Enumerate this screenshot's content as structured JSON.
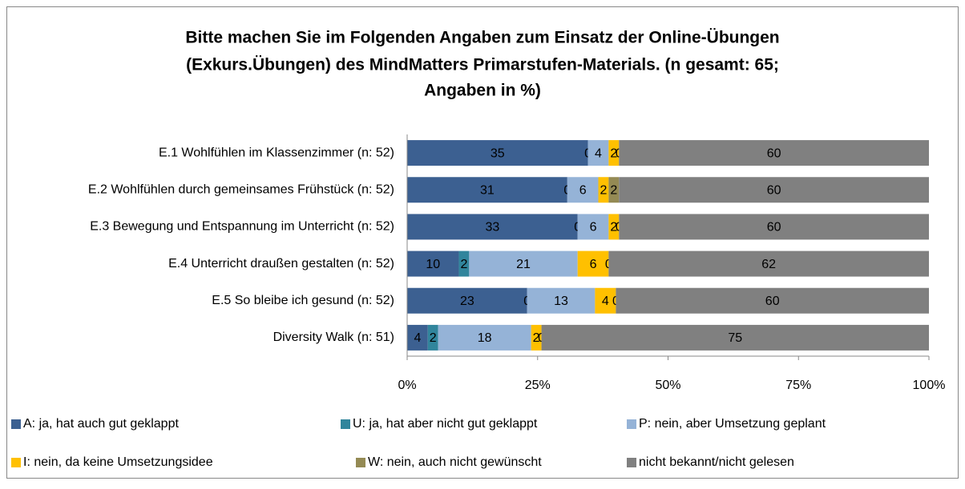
{
  "chart_data": {
    "type": "bar",
    "orientation": "horizontal",
    "stack": "percent",
    "title": [
      "Bitte machen Sie im Folgenden Angaben zum Einsatz der Online-Übungen",
      "(Exkurs.Übungen) des MindMatters Primarstufen-Materials.  (n gesamt: 65;",
      "Angaben in %)"
    ],
    "categories": [
      "E.1  Wohlfühlen im Klassenzimmer (n: 52)",
      "E.2 Wohlfühlen durch gemeinsames Frühstück (n: 52)",
      "E.3 Bewegung und Entspannung im Unterricht (n: 52)",
      "E.4 Unterricht draußen gestalten (n: 52)",
      "E.5 So bleibe ich gesund (n: 52)",
      "Diversity Walk (n: 51)"
    ],
    "series": [
      {
        "name": "A: ja, hat auch gut geklappt",
        "color": "#3c6091",
        "values": [
          35,
          31,
          33,
          10,
          23,
          4
        ]
      },
      {
        "name": "U: ja, hat aber nicht gut geklappt",
        "color": "#31859c",
        "values": [
          0,
          0,
          0,
          2,
          0,
          2
        ]
      },
      {
        "name": "P: nein, aber Umsetzung geplant",
        "color": "#95b3d7",
        "values": [
          4,
          6,
          6,
          21,
          13,
          18
        ]
      },
      {
        "name": "I: nein, da keine Umsetzungsidee",
        "color": "#ffc000",
        "values": [
          2,
          2,
          2,
          6,
          4,
          2
        ]
      },
      {
        "name": "W: nein, auch nicht gewünscht",
        "color": "#948a54",
        "values": [
          0,
          2,
          0,
          0,
          0,
          0
        ]
      },
      {
        "name": "nicht bekannt/nicht gelesen",
        "color": "#808080",
        "values": [
          60,
          60,
          60,
          62,
          60,
          75
        ]
      }
    ],
    "xlim": [
      0,
      100
    ],
    "xticks": [
      {
        "value": 0,
        "label": "0%"
      },
      {
        "value": 25,
        "label": "25%"
      },
      {
        "value": 50,
        "label": "50%"
      },
      {
        "value": 75,
        "label": "75%"
      },
      {
        "value": 100,
        "label": "100%"
      }
    ],
    "grid": false
  }
}
